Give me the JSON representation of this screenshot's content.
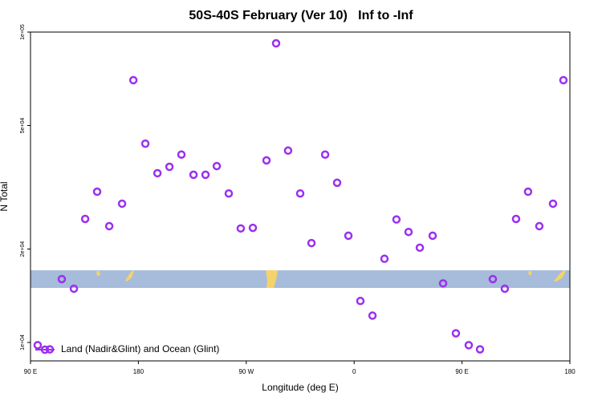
{
  "chart_data": {
    "type": "scatter",
    "title": "50S-40S February (Ver 10)   Inf to -Inf",
    "x_label": "Longitude (deg E)",
    "y_label": "N Total",
    "log_y": true,
    "legend_position": "bottom-left",
    "xlim": [
      90,
      540
    ],
    "ylim": [
      8720,
      100000
    ],
    "xticks": [
      {
        "value": 90,
        "label": "90 E"
      },
      180,
      {
        "value": 270,
        "label": "90 W"
      },
      {
        "value": 360,
        "label": "0"
      },
      {
        "value": 450,
        "label": "90 E"
      },
      {
        "value": 540,
        "label": "180"
      }
    ],
    "yticks": [
      {
        "value": 10000,
        "label": "1e+04"
      },
      {
        "value": 20000,
        "label": "2e+04"
      },
      {
        "value": 50000,
        "label": "5e+04"
      },
      {
        "value": 100000,
        "label": "1e+05"
      }
    ],
    "series": [
      {
        "name": "Land (Nadir&Glint) and Ocean (Glint)",
        "color": "#9b30f0",
        "x": [
          96.0,
          106.1,
          116.1,
          126.2,
          135.6,
          145.6,
          155.7,
          166.4,
          175.8,
          185.8,
          195.9,
          205.9,
          215.9,
          226.0,
          236.0,
          245.4,
          255.4,
          265.4,
          275.5,
          286.9,
          294.9,
          304.9,
          315.0,
          324.4,
          335.8,
          345.8,
          355.2,
          365.2,
          375.3,
          385.3,
          395.3,
          405.4,
          414.8,
          425.5,
          434.2,
          444.9,
          455.6,
          465.0,
          475.7,
          485.7,
          495.1,
          505.1,
          514.5,
          525.9,
          534.6
        ],
        "values": [
          9800,
          9500,
          16000,
          14900,
          25000,
          30600,
          23700,
          28000,
          70000,
          43700,
          35100,
          36800,
          40300,
          34700,
          34700,
          37000,
          30200,
          23300,
          23400,
          38600,
          92000,
          41500,
          30200,
          20900,
          40300,
          32700,
          22070,
          13600,
          12200,
          18600,
          24900,
          22700,
          20200,
          22070,
          15500,
          10700,
          9800,
          9500,
          16000,
          14900,
          25000,
          30600,
          23700,
          28000,
          70000
        ]
      }
    ]
  }
}
